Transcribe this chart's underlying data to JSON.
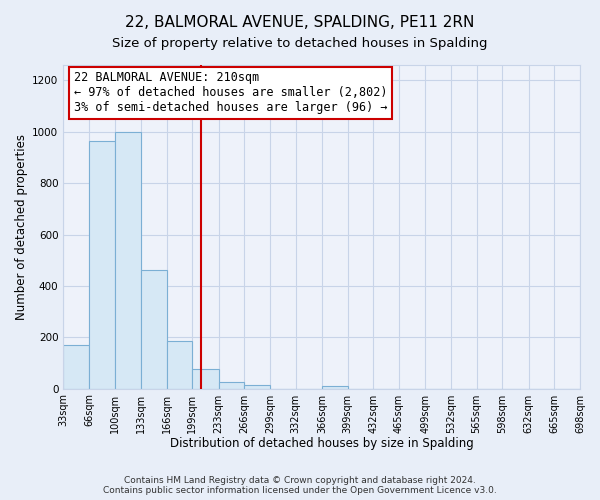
{
  "title": "22, BALMORAL AVENUE, SPALDING, PE11 2RN",
  "subtitle": "Size of property relative to detached houses in Spalding",
  "xlabel": "Distribution of detached houses by size in Spalding",
  "ylabel": "Number of detached properties",
  "bar_edges": [
    33,
    66,
    100,
    133,
    166,
    199,
    233,
    266,
    299,
    332,
    366,
    399,
    432,
    465,
    499,
    532,
    565,
    598,
    632,
    665,
    698
  ],
  "bar_heights": [
    170,
    965,
    1000,
    460,
    185,
    75,
    25,
    15,
    0,
    0,
    10,
    0,
    0,
    0,
    0,
    0,
    0,
    0,
    0,
    0
  ],
  "bar_color": "#d6e8f5",
  "bar_edge_color": "#7bafd4",
  "vline_x": 210,
  "vline_color": "#cc0000",
  "annotation_title": "22 BALMORAL AVENUE: 210sqm",
  "annotation_line1": "← 97% of detached houses are smaller (2,802)",
  "annotation_line2": "3% of semi-detached houses are larger (96) →",
  "annotation_box_color": "#ffffff",
  "annotation_box_edge_color": "#cc0000",
  "ylim": [
    0,
    1260
  ],
  "yticks": [
    0,
    200,
    400,
    600,
    800,
    1000,
    1200
  ],
  "footer_line1": "Contains HM Land Registry data © Crown copyright and database right 2024.",
  "footer_line2": "Contains public sector information licensed under the Open Government Licence v3.0.",
  "grid_color": "#c8d4e8",
  "background_color": "#e8eef8",
  "plot_bg_color": "#eef2fa",
  "title_fontsize": 11,
  "subtitle_fontsize": 9.5,
  "ylabel_fontsize": 8.5,
  "xlabel_fontsize": 8.5,
  "tick_label_fontsize": 7,
  "annotation_fontsize": 8.5,
  "footer_fontsize": 6.5
}
